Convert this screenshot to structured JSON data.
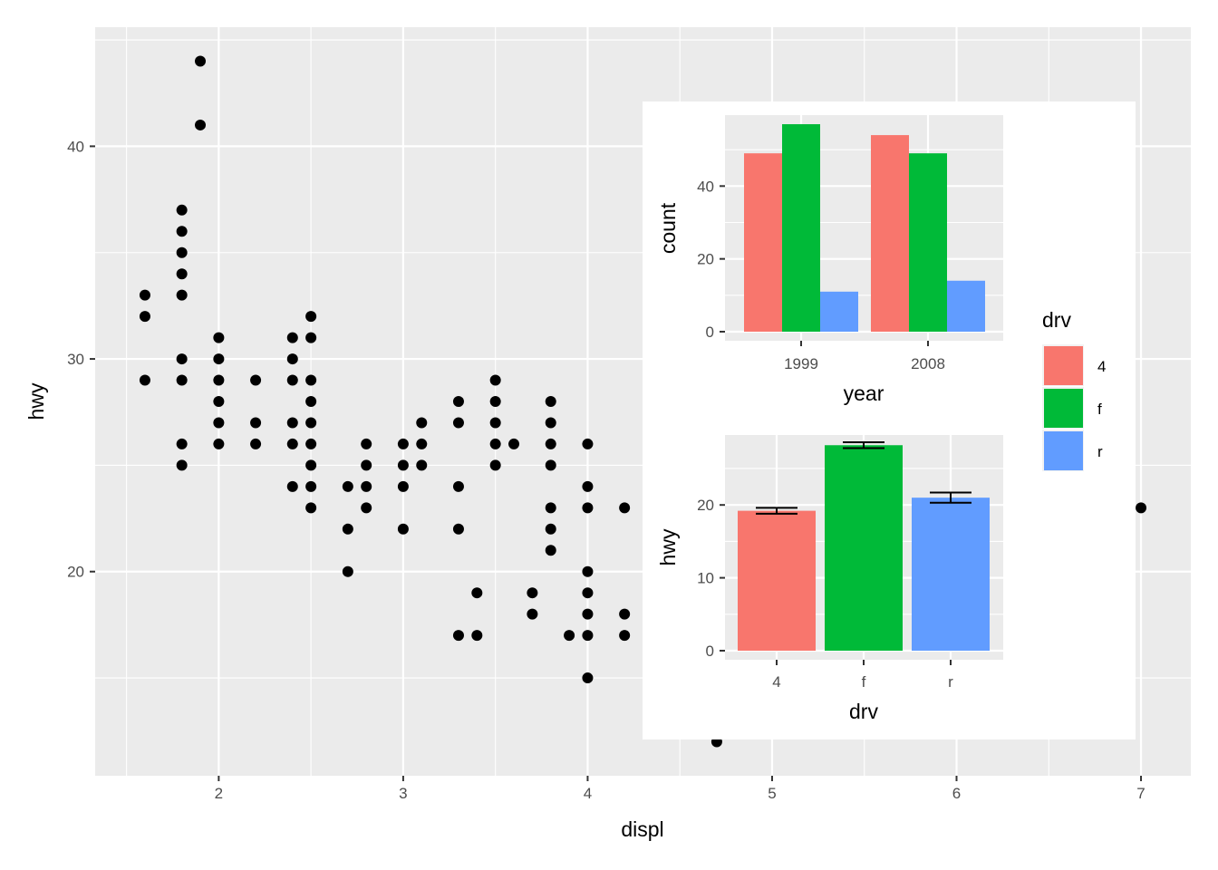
{
  "chart_data": [
    {
      "type": "scatter",
      "xlabel": "displ",
      "ylabel": "hwy",
      "xlim": [
        1.33,
        7.27
      ],
      "ylim": [
        10.4,
        45.6
      ],
      "xticks": [
        "2",
        "3",
        "4",
        "5",
        "6",
        "7"
      ],
      "yticks": [
        "20",
        "30",
        "40"
      ],
      "grid": true,
      "points": [
        [
          1.6,
          33
        ],
        [
          1.6,
          32
        ],
        [
          1.6,
          29
        ],
        [
          1.8,
          37
        ],
        [
          1.8,
          36
        ],
        [
          1.8,
          35
        ],
        [
          1.8,
          34
        ],
        [
          1.8,
          33
        ],
        [
          1.8,
          30
        ],
        [
          1.8,
          29
        ],
        [
          1.8,
          26
        ],
        [
          1.8,
          25
        ],
        [
          1.9,
          44
        ],
        [
          1.9,
          41
        ],
        [
          2.0,
          31
        ],
        [
          2.0,
          30
        ],
        [
          2.0,
          29
        ],
        [
          2.0,
          28
        ],
        [
          2.0,
          27
        ],
        [
          2.0,
          26
        ],
        [
          2.2,
          29
        ],
        [
          2.2,
          27
        ],
        [
          2.2,
          26
        ],
        [
          2.4,
          31
        ],
        [
          2.4,
          30
        ],
        [
          2.4,
          29
        ],
        [
          2.4,
          27
        ],
        [
          2.4,
          26
        ],
        [
          2.4,
          24
        ],
        [
          2.5,
          32
        ],
        [
          2.5,
          31
        ],
        [
          2.5,
          29
        ],
        [
          2.5,
          28
        ],
        [
          2.5,
          27
        ],
        [
          2.5,
          26
        ],
        [
          2.5,
          25
        ],
        [
          2.5,
          24
        ],
        [
          2.5,
          23
        ],
        [
          2.7,
          24
        ],
        [
          2.7,
          22
        ],
        [
          2.7,
          20
        ],
        [
          2.8,
          26
        ],
        [
          2.8,
          25
        ],
        [
          2.8,
          24
        ],
        [
          2.8,
          23
        ],
        [
          3.0,
          26
        ],
        [
          3.0,
          25
        ],
        [
          3.0,
          24
        ],
        [
          3.0,
          22
        ],
        [
          3.1,
          27
        ],
        [
          3.1,
          26
        ],
        [
          3.1,
          25
        ],
        [
          3.3,
          28
        ],
        [
          3.3,
          27
        ],
        [
          3.3,
          24
        ],
        [
          3.3,
          22
        ],
        [
          3.3,
          17
        ],
        [
          3.4,
          19
        ],
        [
          3.4,
          17
        ],
        [
          3.5,
          29
        ],
        [
          3.5,
          28
        ],
        [
          3.5,
          27
        ],
        [
          3.5,
          26
        ],
        [
          3.5,
          25
        ],
        [
          3.6,
          26
        ],
        [
          3.7,
          19
        ],
        [
          3.7,
          18
        ],
        [
          3.8,
          28
        ],
        [
          3.8,
          27
        ],
        [
          3.8,
          26
        ],
        [
          3.8,
          25
        ],
        [
          3.8,
          23
        ],
        [
          3.8,
          22
        ],
        [
          3.8,
          21
        ],
        [
          3.9,
          17
        ],
        [
          4.0,
          26
        ],
        [
          4.0,
          24
        ],
        [
          4.0,
          23
        ],
        [
          4.0,
          20
        ],
        [
          4.0,
          19
        ],
        [
          4.0,
          18
        ],
        [
          4.0,
          17
        ],
        [
          4.0,
          15
        ],
        [
          4.2,
          23
        ],
        [
          4.2,
          18
        ],
        [
          4.2,
          17
        ],
        [
          4.7,
          12
        ],
        [
          7.0,
          23
        ]
      ]
    },
    {
      "type": "bar",
      "xlabel": "year",
      "ylabel": "count",
      "categories": [
        "1999",
        "2008"
      ],
      "ylim": [
        0,
        59.5
      ],
      "yticks": [
        "0",
        "20",
        "40"
      ],
      "series": [
        {
          "name": "4",
          "values": [
            49,
            54
          ]
        },
        {
          "name": "f",
          "values": [
            57,
            49
          ]
        },
        {
          "name": "r",
          "values": [
            11,
            14
          ]
        }
      ]
    },
    {
      "type": "bar",
      "xlabel": "drv",
      "ylabel": "hwy",
      "categories": [
        "4",
        "f",
        "r"
      ],
      "values": [
        19.2,
        28.2,
        21.0
      ],
      "error_low": [
        18.8,
        27.8,
        20.3
      ],
      "error_high": [
        19.6,
        28.6,
        21.7
      ],
      "ylim": [
        0,
        29.6
      ],
      "yticks": [
        "0",
        "10",
        "20"
      ]
    }
  ],
  "legend": {
    "title": "drv",
    "items": [
      {
        "label": "4",
        "color": "#F8766D"
      },
      {
        "label": "f",
        "color": "#00BA38"
      },
      {
        "label": "r",
        "color": "#619CFF"
      }
    ]
  },
  "colors": {
    "panel_bg": "#EBEBEB",
    "grid": "#FFFFFF",
    "point": "#000000",
    "4": "#F8766D",
    "f": "#00BA38",
    "r": "#619CFF"
  }
}
